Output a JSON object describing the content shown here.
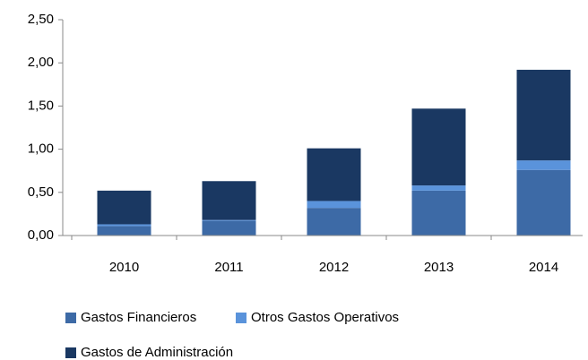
{
  "chart_data": {
    "type": "stacked_bar",
    "categories": [
      "2010",
      "2011",
      "2012",
      "2013",
      "2014"
    ],
    "series": [
      {
        "name": "Gastos Financieros",
        "color": "#3d6aa6",
        "values": [
          0.11,
          0.17,
          0.32,
          0.52,
          0.76
        ]
      },
      {
        "name": "Otros Gastos  Operativos",
        "color": "#5a93db",
        "values": [
          0.02,
          0.01,
          0.08,
          0.06,
          0.11
        ]
      },
      {
        "name": "Gastos de Administración",
        "color": "#1a3862",
        "values": [
          0.39,
          0.45,
          0.61,
          0.89,
          1.05
        ]
      }
    ],
    "ylim": [
      0,
      2.5
    ],
    "yticks": [
      {
        "value": 0,
        "label": "0,00"
      },
      {
        "value": 0.5,
        "label": "0,50"
      },
      {
        "value": 1,
        "label": "1,00"
      },
      {
        "value": 1.5,
        "label": "1,50"
      },
      {
        "value": 2,
        "label": "2,00"
      },
      {
        "value": 2.5,
        "label": "2,50"
      }
    ],
    "grid": false
  }
}
